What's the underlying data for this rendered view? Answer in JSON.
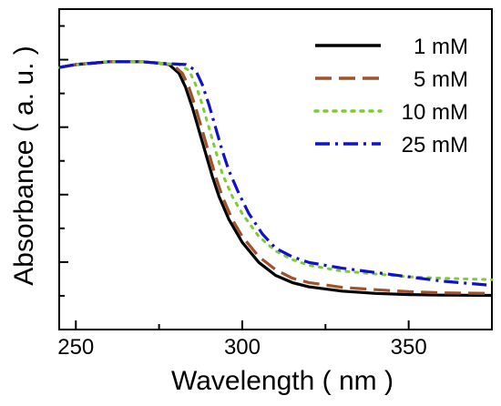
{
  "chart_data": {
    "type": "line",
    "xlabel": "Wavelength ( nm )",
    "ylabel": "Absorbance ( a. u. )",
    "xlim": [
      245,
      375
    ],
    "ylim": [
      0,
      1
    ],
    "x_ticks": [
      250,
      300,
      350
    ],
    "x_tick_labels": [
      "250",
      "300",
      "350"
    ],
    "y_tick_labels_shown": false,
    "legend_position": "top-right",
    "series": [
      {
        "name": "1 mM",
        "color": "#000000",
        "style": "solid",
        "points": [
          [
            245,
            0.86
          ],
          [
            250,
            0.87
          ],
          [
            255,
            0.875
          ],
          [
            260,
            0.88
          ],
          [
            265,
            0.88
          ],
          [
            270,
            0.88
          ],
          [
            275,
            0.875
          ],
          [
            278,
            0.87
          ],
          [
            281,
            0.84
          ],
          [
            283,
            0.79
          ],
          [
            285,
            0.72
          ],
          [
            287,
            0.64
          ],
          [
            289,
            0.56
          ],
          [
            291,
            0.48
          ],
          [
            293,
            0.41
          ],
          [
            296,
            0.33
          ],
          [
            300,
            0.25
          ],
          [
            305,
            0.18
          ],
          [
            310,
            0.135
          ],
          [
            315,
            0.11
          ],
          [
            320,
            0.095
          ],
          [
            330,
            0.08
          ],
          [
            340,
            0.072
          ],
          [
            350,
            0.068
          ],
          [
            360,
            0.066
          ],
          [
            375,
            0.065
          ]
        ]
      },
      {
        "name": "5 mM",
        "color": "#a0522d",
        "style": "dashed",
        "points": [
          [
            245,
            0.86
          ],
          [
            250,
            0.87
          ],
          [
            255,
            0.875
          ],
          [
            260,
            0.88
          ],
          [
            265,
            0.88
          ],
          [
            270,
            0.88
          ],
          [
            275,
            0.875
          ],
          [
            279,
            0.87
          ],
          [
            282,
            0.84
          ],
          [
            284,
            0.79
          ],
          [
            286,
            0.72
          ],
          [
            288,
            0.64
          ],
          [
            290,
            0.56
          ],
          [
            292,
            0.48
          ],
          [
            294,
            0.41
          ],
          [
            297,
            0.33
          ],
          [
            300,
            0.27
          ],
          [
            305,
            0.2
          ],
          [
            310,
            0.155
          ],
          [
            315,
            0.125
          ],
          [
            320,
            0.11
          ],
          [
            330,
            0.093
          ],
          [
            340,
            0.085
          ],
          [
            350,
            0.078
          ],
          [
            360,
            0.074
          ],
          [
            375,
            0.072
          ]
        ]
      },
      {
        "name": "10 mM",
        "color": "#7ccd32",
        "style": "dotted",
        "points": [
          [
            245,
            0.86
          ],
          [
            250,
            0.87
          ],
          [
            255,
            0.875
          ],
          [
            260,
            0.88
          ],
          [
            265,
            0.88
          ],
          [
            270,
            0.88
          ],
          [
            275,
            0.875
          ],
          [
            281,
            0.87
          ],
          [
            284,
            0.85
          ],
          [
            286,
            0.8
          ],
          [
            288,
            0.73
          ],
          [
            290,
            0.65
          ],
          [
            292,
            0.57
          ],
          [
            294,
            0.49
          ],
          [
            297,
            0.41
          ],
          [
            300,
            0.35
          ],
          [
            305,
            0.27
          ],
          [
            310,
            0.22
          ],
          [
            315,
            0.19
          ],
          [
            320,
            0.17
          ],
          [
            330,
            0.15
          ],
          [
            340,
            0.14
          ],
          [
            350,
            0.13
          ],
          [
            360,
            0.125
          ],
          [
            375,
            0.12
          ]
        ]
      },
      {
        "name": "25 mM",
        "color": "#1010d0",
        "style": "dashdot",
        "points": [
          [
            245,
            0.86
          ],
          [
            250,
            0.87
          ],
          [
            255,
            0.875
          ],
          [
            260,
            0.88
          ],
          [
            265,
            0.88
          ],
          [
            270,
            0.88
          ],
          [
            275,
            0.875
          ],
          [
            283,
            0.87
          ],
          [
            286,
            0.85
          ],
          [
            288,
            0.8
          ],
          [
            290,
            0.73
          ],
          [
            292,
            0.65
          ],
          [
            294,
            0.57
          ],
          [
            296,
            0.5
          ],
          [
            299,
            0.42
          ],
          [
            302,
            0.35
          ],
          [
            306,
            0.28
          ],
          [
            310,
            0.23
          ],
          [
            315,
            0.2
          ],
          [
            320,
            0.18
          ],
          [
            330,
            0.16
          ],
          [
            340,
            0.145
          ],
          [
            350,
            0.13
          ],
          [
            360,
            0.115
          ],
          [
            375,
            0.1
          ]
        ]
      }
    ]
  }
}
